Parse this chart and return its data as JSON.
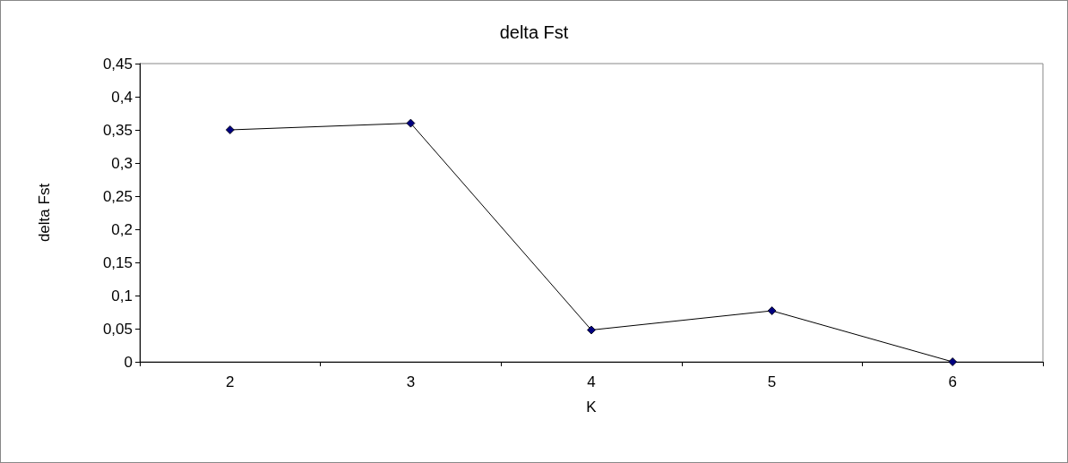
{
  "chart_data": {
    "type": "line",
    "title": "delta Fst",
    "xlabel": "K",
    "ylabel": "delta Fst",
    "categories": [
      "2",
      "3",
      "4",
      "5",
      "6"
    ],
    "series": [
      {
        "color": "#000080",
        "values": [
          0.35,
          0.36,
          0.048,
          0.077,
          0
        ]
      }
    ],
    "ylim": [
      0,
      0.45
    ],
    "yticks": [
      0,
      {
        "value": 0.05,
        "label": "0,05"
      },
      {
        "value": 0.1,
        "label": "0,1"
      },
      {
        "value": 0.15,
        "label": "0,15"
      },
      {
        "value": 0.2,
        "label": "0,2"
      },
      {
        "value": 0.25,
        "label": "0,25"
      },
      {
        "value": 0.3,
        "label": "0,3"
      },
      {
        "value": 0.35,
        "label": "0,35"
      },
      {
        "value": 0.4,
        "label": "0,4"
      },
      {
        "value": 0.45,
        "label": "0,45"
      }
    ],
    "grid": false,
    "marker": "diamond",
    "line_style": "solid"
  }
}
